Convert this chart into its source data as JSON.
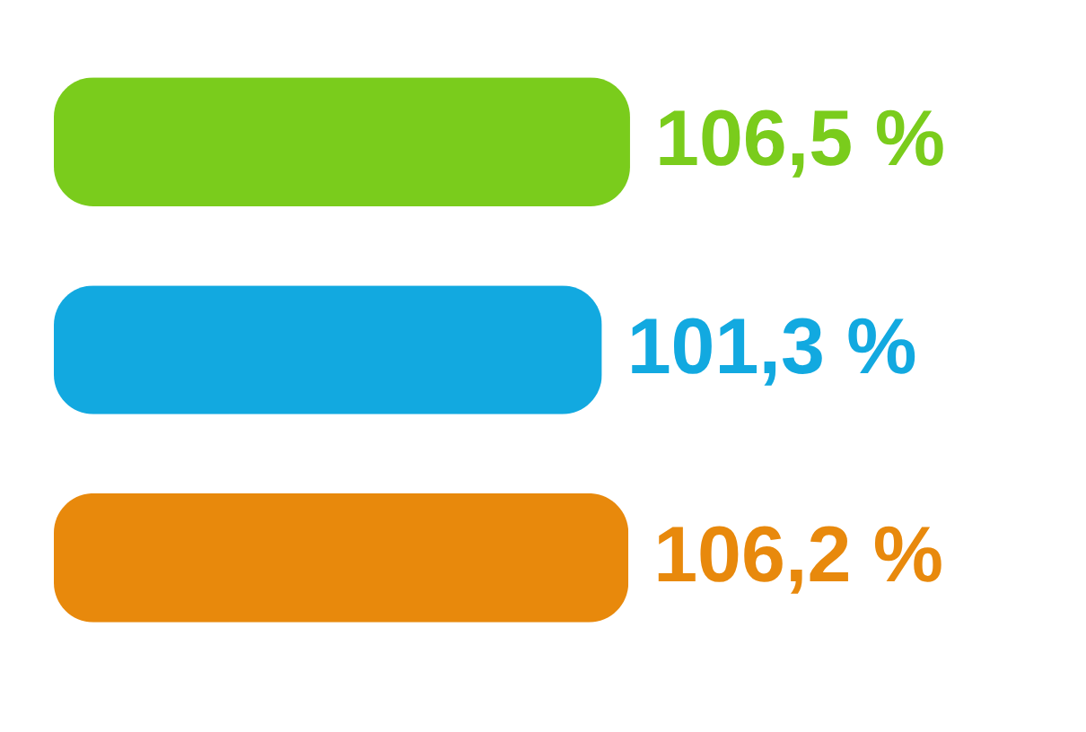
{
  "chart_data": {
    "type": "bar",
    "orientation": "horizontal",
    "categories": [
      null,
      null,
      null
    ],
    "values": [
      106.5,
      101.3,
      106.2
    ],
    "colors": [
      "#7acc1c",
      "#12a9e0",
      "#e8890c"
    ],
    "value_labels": [
      "106,5 %",
      "101,3 %",
      "106,2 %"
    ],
    "tick_labels": false
  }
}
